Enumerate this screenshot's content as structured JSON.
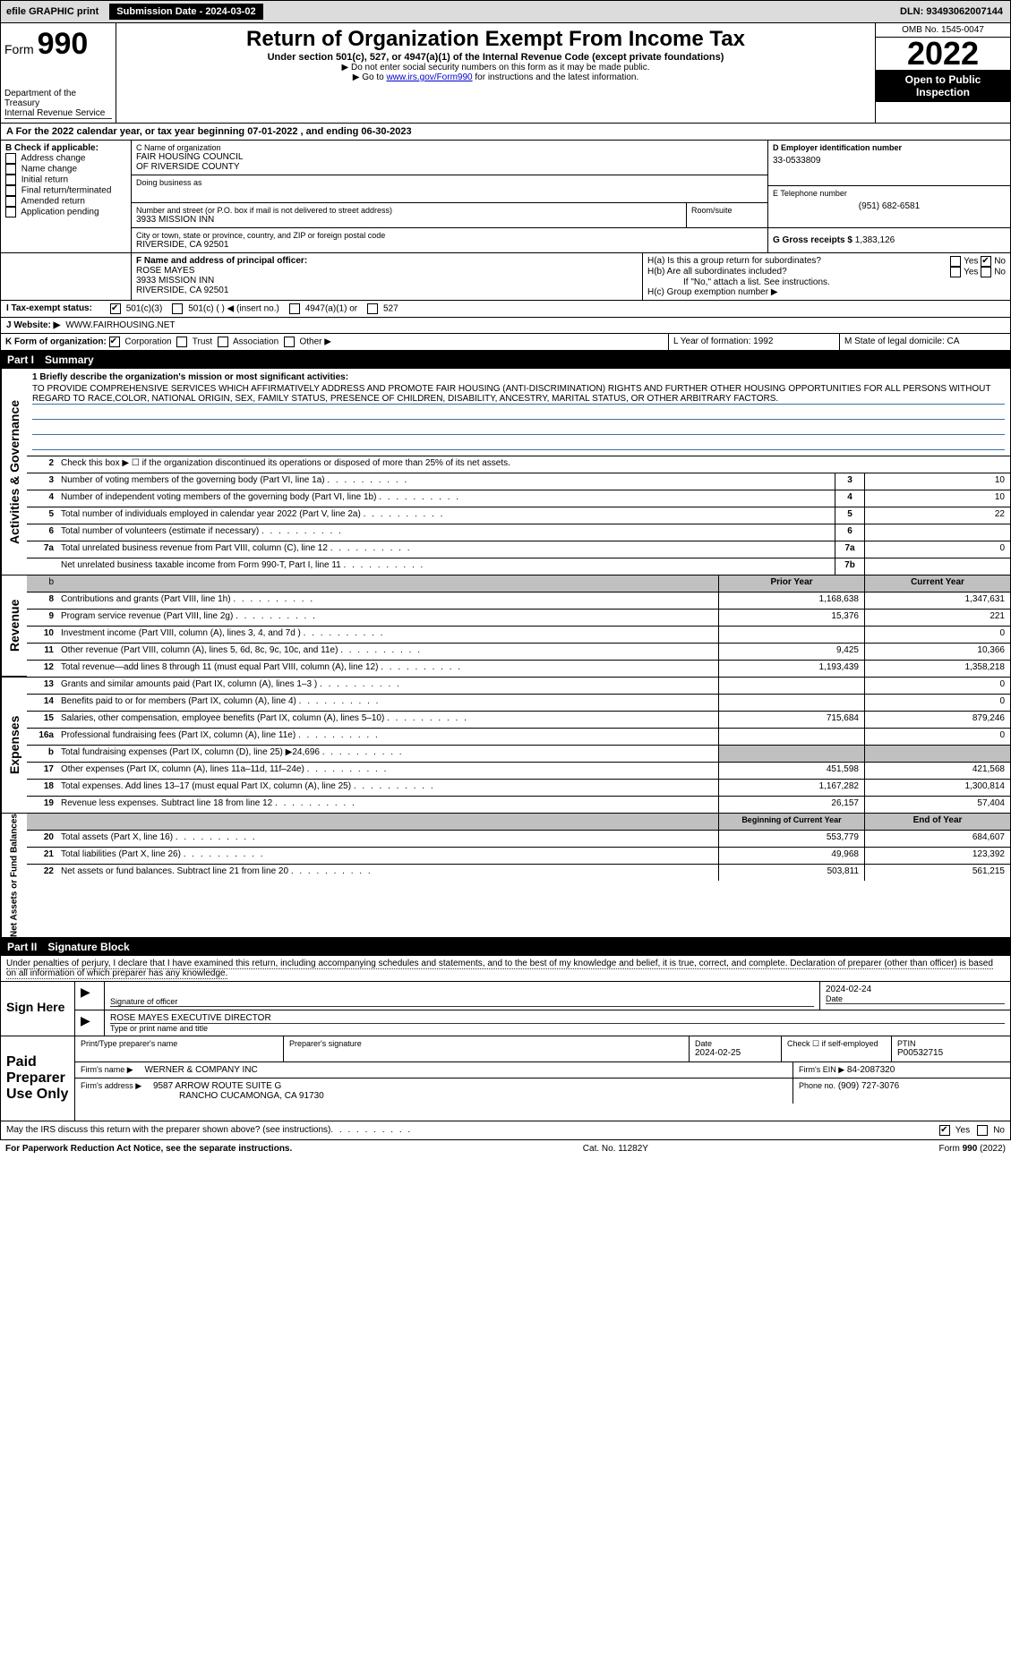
{
  "topbar": {
    "efile": "efile GRAPHIC print",
    "submission_label": "Submission Date - 2024-03-02",
    "dln": "DLN: 93493062007144"
  },
  "header": {
    "form_prefix": "Form",
    "form_number": "990",
    "dept": "Department of the Treasury",
    "irs": "Internal Revenue Service",
    "title": "Return of Organization Exempt From Income Tax",
    "subtitle": "Under section 501(c), 527, or 4947(a)(1) of the Internal Revenue Code (except private foundations)",
    "note1": "▶ Do not enter social security numbers on this form as it may be made public.",
    "note2_pre": "▶ Go to ",
    "note2_link": "www.irs.gov/Form990",
    "note2_post": " for instructions and the latest information.",
    "omb": "OMB No. 1545-0047",
    "year": "2022",
    "open": "Open to Public Inspection"
  },
  "period": {
    "text_a": "A For the 2022 calendar year, or tax year beginning 07-01-2022     , and ending 06-30-2023"
  },
  "section_b": {
    "title": "B Check if applicable:",
    "items": [
      "Address change",
      "Name change",
      "Initial return",
      "Final return/terminated",
      "Amended return",
      "Application pending"
    ]
  },
  "section_c": {
    "name_label": "C Name of organization",
    "name1": "FAIR HOUSING COUNCIL",
    "name2": "OF RIVERSIDE COUNTY",
    "dba_label": "Doing business as",
    "street_label": "Number and street (or P.O. box if mail is not delivered to street address)",
    "room_label": "Room/suite",
    "street": "3933 MISSION INN",
    "city_label": "City or town, state or province, country, and ZIP or foreign postal code",
    "city": "RIVERSIDE, CA  92501"
  },
  "section_d": {
    "ein_label": "D Employer identification number",
    "ein": "33-0533809",
    "phone_label": "E Telephone number",
    "phone": "(951) 682-6581",
    "gross_label": "G Gross receipts $",
    "gross": "1,383,126"
  },
  "section_f": {
    "label": "F  Name and address of principal officer:",
    "name": "ROSE MAYES",
    "addr1": "3933 MISSION INN",
    "addr2": "RIVERSIDE, CA  92501"
  },
  "section_h": {
    "ha": "H(a)  Is this a group return for subordinates?",
    "hb": "H(b)  Are all subordinates included?",
    "hb_note": "If \"No,\" attach a list. See instructions.",
    "hc": "H(c)  Group exemption number ▶",
    "yes": "Yes",
    "no": "No"
  },
  "tax_status": {
    "label": "I   Tax-exempt status:",
    "opts": [
      "501(c)(3)",
      "501(c) (   ) ◀ (insert no.)",
      "4947(a)(1) or",
      "527"
    ]
  },
  "section_j": {
    "label": "J   Website: ▶",
    "url": "WWW.FAIRHOUSING.NET"
  },
  "section_k": {
    "label": "K Form of organization:",
    "opts": [
      "Corporation",
      "Trust",
      "Association",
      "Other ▶"
    ]
  },
  "section_l": {
    "label": "L Year of formation: 1992"
  },
  "section_m": {
    "label": "M State of legal domicile: CA"
  },
  "part1": {
    "label": "Part I",
    "title": "Summary",
    "line1_label": "1  Briefly describe the organization's mission or most significant activities:",
    "mission": "TO PROVIDE COMPREHENSIVE SERVICES WHICH AFFIRMATIVELY ADDRESS AND PROMOTE FAIR HOUSING (ANTI-DISCRIMINATION) RIGHTS AND FURTHER OTHER HOUSING OPPORTUNITIES FOR ALL PERSONS WITHOUT REGARD TO RACE,COLOR, NATIONAL ORIGIN, SEX, FAMILY STATUS, PRESENCE OF CHILDREN, DISABILITY, ANCESTRY, MARITAL STATUS, OR OTHER ARBITRARY FACTORS.",
    "line2": "Check this box ▶ ☐  if the organization discontinued its operations or disposed of more than 25% of its net assets.",
    "rows_ag": [
      {
        "n": "3",
        "t": "Number of voting members of the governing body (Part VI, line 1a)",
        "b": "3",
        "v": "10"
      },
      {
        "n": "4",
        "t": "Number of independent voting members of the governing body (Part VI, line 1b)",
        "b": "4",
        "v": "10"
      },
      {
        "n": "5",
        "t": "Total number of individuals employed in calendar year 2022 (Part V, line 2a)",
        "b": "5",
        "v": "22"
      },
      {
        "n": "6",
        "t": "Total number of volunteers (estimate if necessary)",
        "b": "6",
        "v": ""
      },
      {
        "n": "7a",
        "t": "Total unrelated business revenue from Part VIII, column (C), line 12",
        "b": "7a",
        "v": "0"
      },
      {
        "n": "",
        "t": "Net unrelated business taxable income from Form 990-T, Part I, line 11",
        "b": "7b",
        "v": ""
      }
    ],
    "col_headers": {
      "prior": "Prior Year",
      "current": "Current Year"
    },
    "revenue": [
      {
        "n": "8",
        "t": "Contributions and grants (Part VIII, line 1h)",
        "p": "1,168,638",
        "c": "1,347,631"
      },
      {
        "n": "9",
        "t": "Program service revenue (Part VIII, line 2g)",
        "p": "15,376",
        "c": "221"
      },
      {
        "n": "10",
        "t": "Investment income (Part VIII, column (A), lines 3, 4, and 7d )",
        "p": "",
        "c": "0"
      },
      {
        "n": "11",
        "t": "Other revenue (Part VIII, column (A), lines 5, 6d, 8c, 9c, 10c, and 11e)",
        "p": "9,425",
        "c": "10,366"
      },
      {
        "n": "12",
        "t": "Total revenue—add lines 8 through 11 (must equal Part VIII, column (A), line 12)",
        "p": "1,193,439",
        "c": "1,358,218"
      }
    ],
    "expenses": [
      {
        "n": "13",
        "t": "Grants and similar amounts paid (Part IX, column (A), lines 1–3 )",
        "p": "",
        "c": "0"
      },
      {
        "n": "14",
        "t": "Benefits paid to or for members (Part IX, column (A), line 4)",
        "p": "",
        "c": "0"
      },
      {
        "n": "15",
        "t": "Salaries, other compensation, employee benefits (Part IX, column (A), lines 5–10)",
        "p": "715,684",
        "c": "879,246"
      },
      {
        "n": "16a",
        "t": "Professional fundraising fees (Part IX, column (A), line 11e)",
        "p": "",
        "c": "0"
      },
      {
        "n": "b",
        "t": "Total fundraising expenses (Part IX, column (D), line 25) ▶24,696",
        "p": "shade",
        "c": "shade"
      },
      {
        "n": "17",
        "t": "Other expenses (Part IX, column (A), lines 11a–11d, 11f–24e)",
        "p": "451,598",
        "c": "421,568"
      },
      {
        "n": "18",
        "t": "Total expenses. Add lines 13–17 (must equal Part IX, column (A), line 25)",
        "p": "1,167,282",
        "c": "1,300,814"
      },
      {
        "n": "19",
        "t": "Revenue less expenses. Subtract line 18 from line 12",
        "p": "26,157",
        "c": "57,404"
      }
    ],
    "net_headers": {
      "prior": "Beginning of Current Year",
      "current": "End of Year"
    },
    "net": [
      {
        "n": "20",
        "t": "Total assets (Part X, line 16)",
        "p": "553,779",
        "c": "684,607"
      },
      {
        "n": "21",
        "t": "Total liabilities (Part X, line 26)",
        "p": "49,968",
        "c": "123,392"
      },
      {
        "n": "22",
        "t": "Net assets or fund balances. Subtract line 21 from line 20",
        "p": "503,811",
        "c": "561,215"
      }
    ]
  },
  "part2": {
    "label": "Part II",
    "title": "Signature Block",
    "penalty": "Under penalties of perjury, I declare that I have examined this return, including accompanying schedules and statements, and to the best of my knowledge and belief, it is true, correct, and complete. Declaration of preparer (other than officer) is based on all information of which preparer has any knowledge."
  },
  "sign": {
    "here": "Sign Here",
    "sig_officer": "Signature of officer",
    "date": "Date",
    "date_val": "2024-02-24",
    "name_title": "ROSE MAYES EXECUTIVE DIRECTOR",
    "type_name": "Type or print name and title"
  },
  "preparer": {
    "label": "Paid Preparer Use Only",
    "print_name": "Print/Type preparer's name",
    "prep_sig": "Preparer's signature",
    "date_label": "Date",
    "date_val": "2024-02-25",
    "check_label": "Check ☐ if self-employed",
    "ptin_label": "PTIN",
    "ptin": "P00532715",
    "firm_name_label": "Firm's name    ▶",
    "firm_name": "WERNER & COMPANY INC",
    "firm_ein_label": "Firm's EIN ▶",
    "firm_ein": "84-2087320",
    "firm_addr_label": "Firm's address ▶",
    "firm_addr1": "9587 ARROW ROUTE SUITE G",
    "firm_addr2": "RANCHO CUCAMONGA, CA  91730",
    "phone_label": "Phone no.",
    "phone": "(909) 727-3076"
  },
  "discuss": {
    "text": "May the IRS discuss this return with the preparer shown above? (see instructions)",
    "yes": "Yes",
    "no": "No"
  },
  "footer": {
    "left": "For Paperwork Reduction Act Notice, see the separate instructions.",
    "mid": "Cat. No. 11282Y",
    "right": "Form 990 (2022)"
  }
}
